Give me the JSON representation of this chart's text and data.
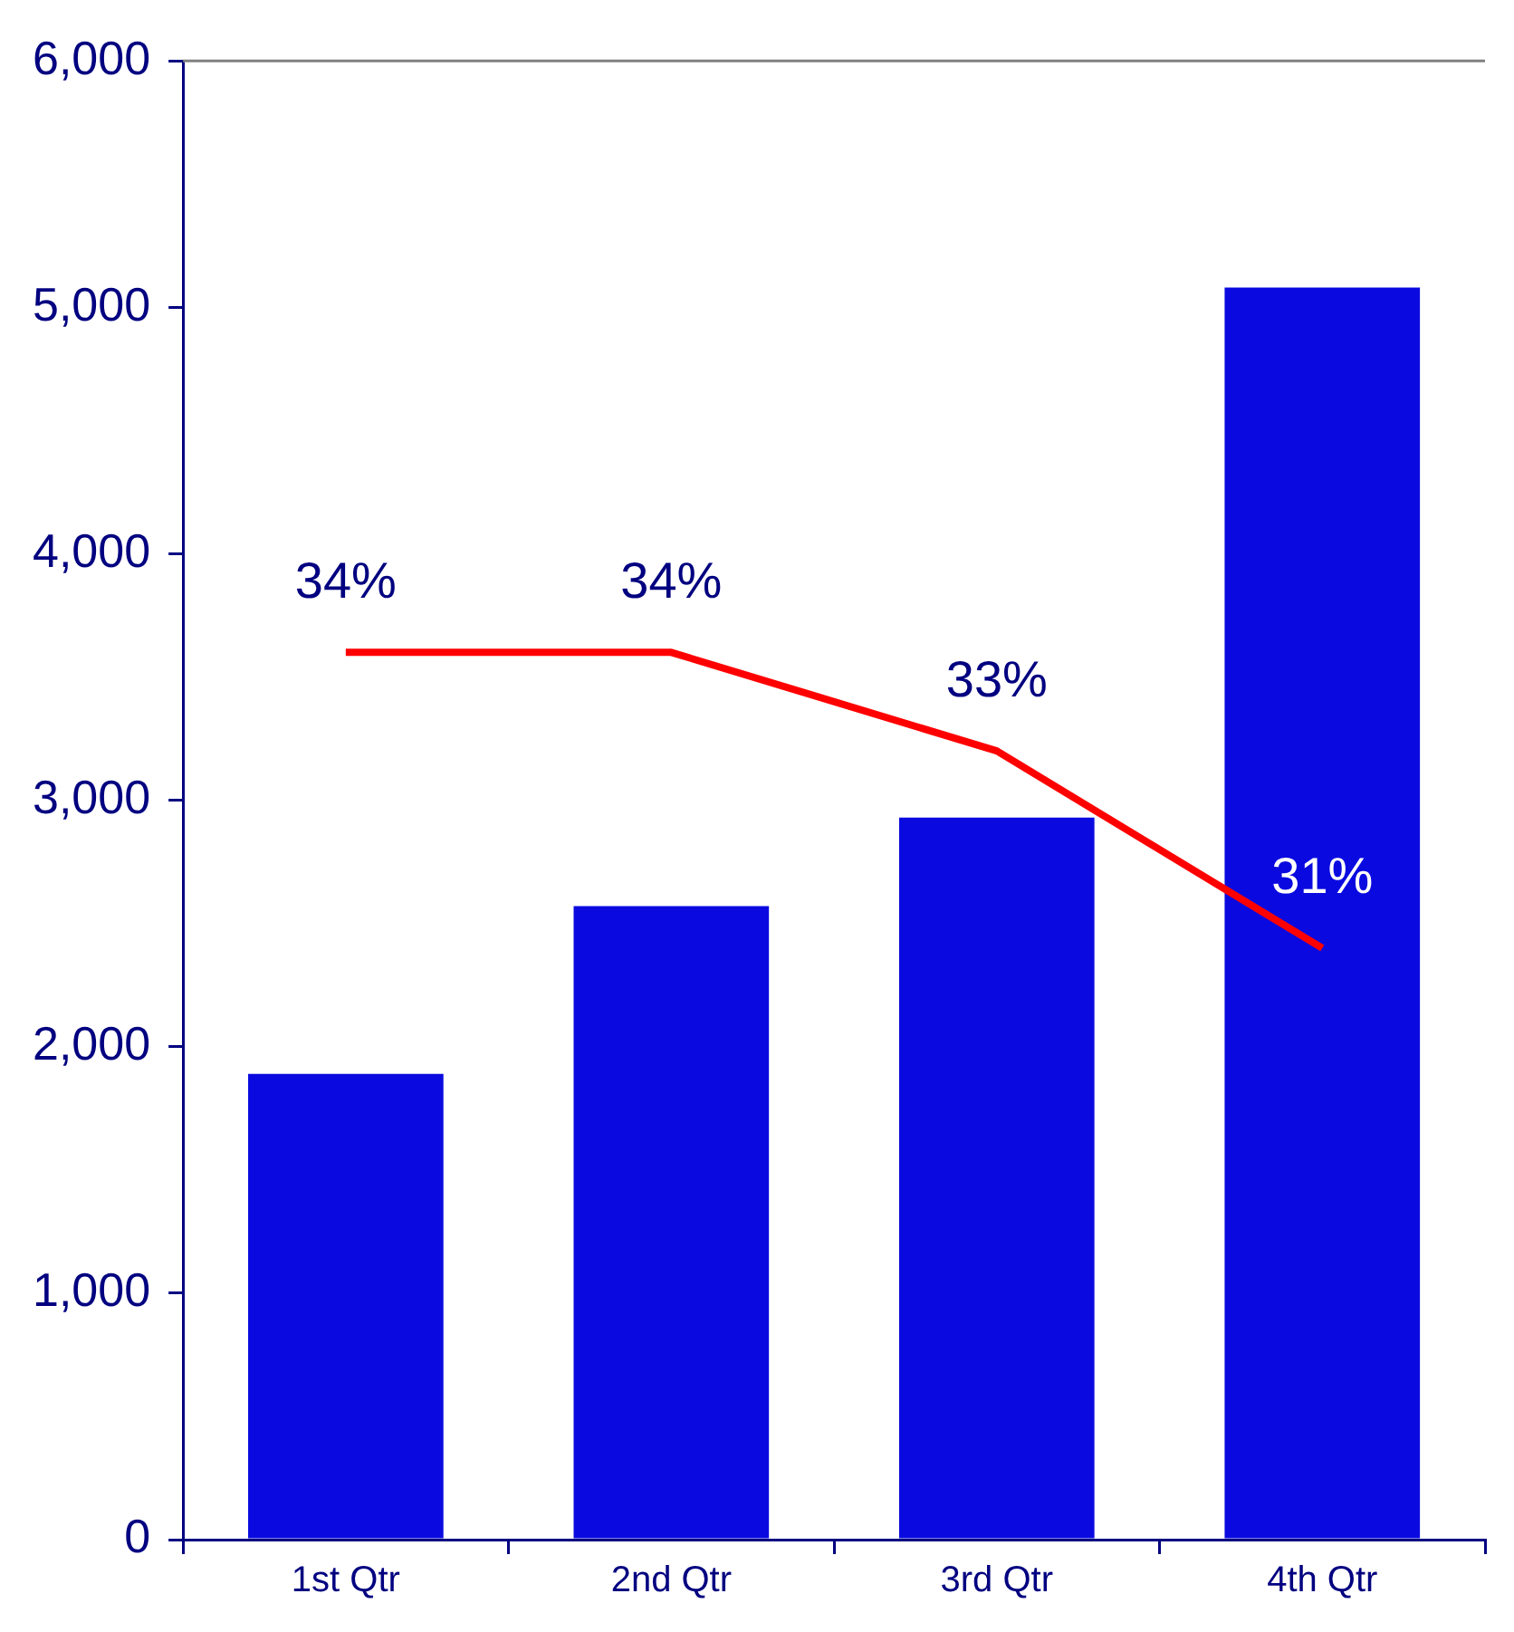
{
  "chart_data": {
    "type": "bar",
    "categories": [
      "1st Qtr",
      "2nd Qtr",
      "3rd Qtr",
      "4th Qtr"
    ],
    "ylim": [
      0,
      6000
    ],
    "yticks": [
      {
        "value": 0,
        "label": "0"
      },
      {
        "value": 1000,
        "label": "1,000"
      },
      {
        "value": 2000,
        "label": "2,000"
      },
      {
        "value": 3000,
        "label": "3,000"
      },
      {
        "value": 4000,
        "label": "4,000"
      },
      {
        "value": 5000,
        "label": "5,000"
      },
      {
        "value": 6000,
        "label": "6,000"
      }
    ],
    "y2lim": [
      25,
      40
    ],
    "series": [
      {
        "color": "#0a0ae0",
        "values": [
          1890,
          2570,
          2930,
          5080
        ]
      },
      {
        "type": "line",
        "axis": "y2",
        "color": "#ff0000",
        "values": [
          34,
          34,
          33,
          31
        ],
        "value_labels": [
          "34%",
          "34%",
          "33%",
          "31%"
        ]
      }
    ],
    "grid": false,
    "legend": false,
    "marker": "none"
  }
}
